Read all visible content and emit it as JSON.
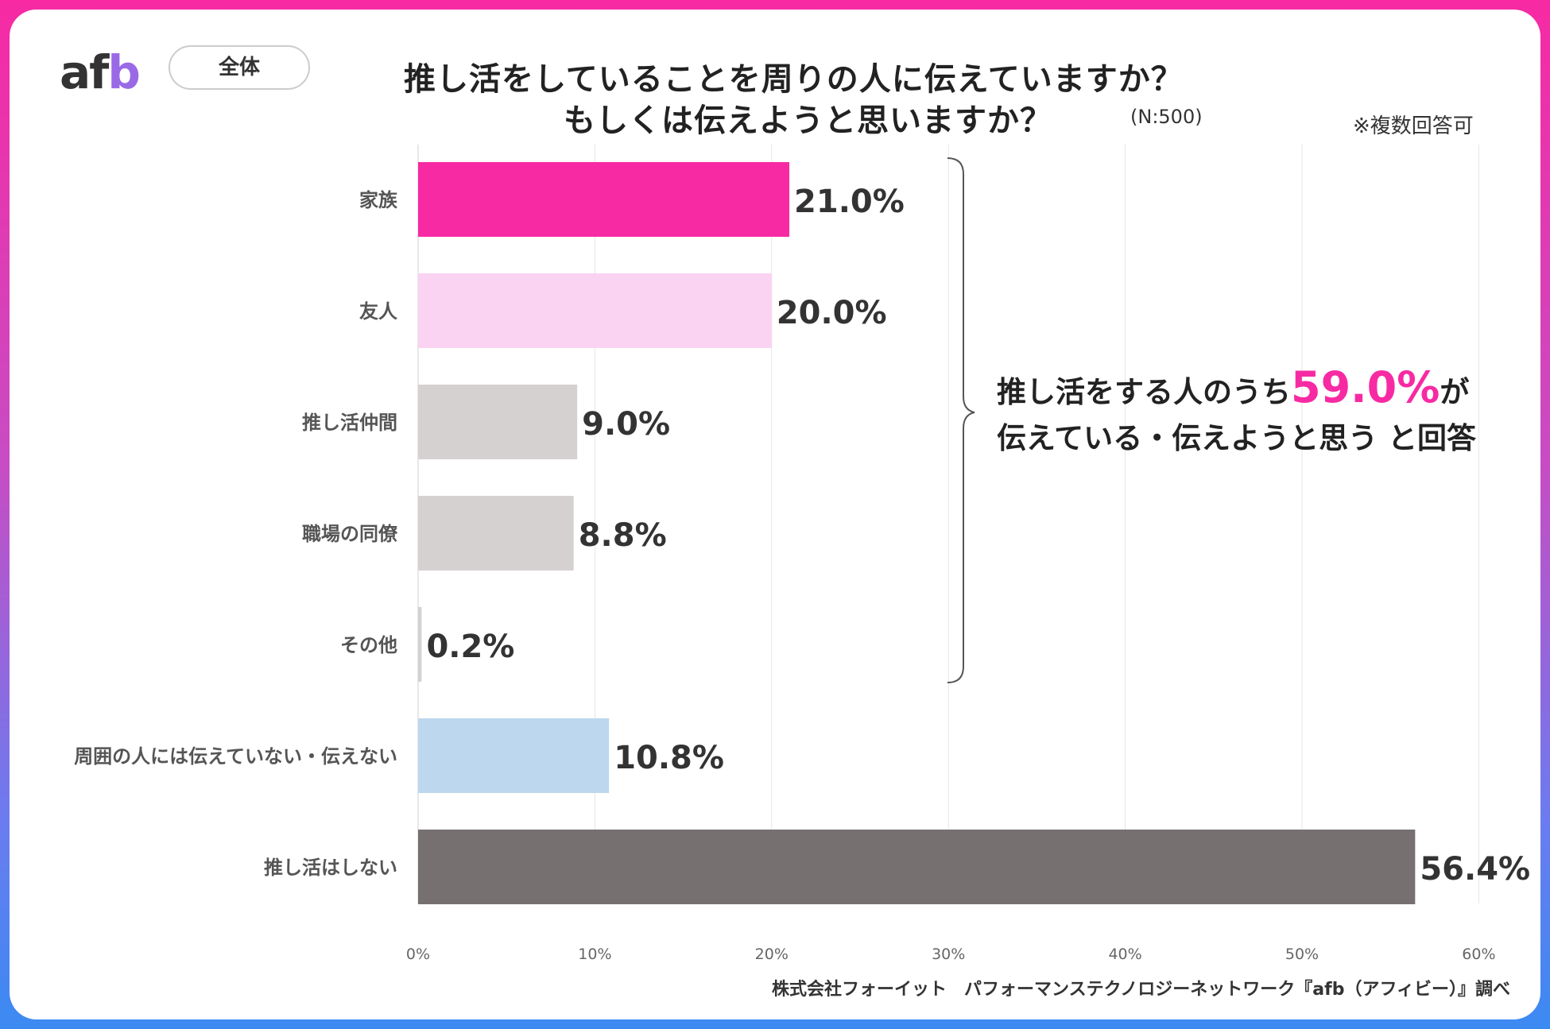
{
  "brand": {
    "logo_text_a": "af",
    "logo_text_b": "b"
  },
  "scope_label": "全体",
  "title": {
    "line1": "推し活をしていることを周りの人に伝えていますか？",
    "line2": "もしくは伝えようと思いますか？",
    "sample": "(N:500)",
    "note": "※複数回答可"
  },
  "callout": {
    "prefix": "推し活をする人のうち",
    "highlight": "59.0%",
    "suffix": "が",
    "line2": "伝えている・伝えようと思う と回答"
  },
  "source": "株式会社フォーイット　パフォーマンステクノロジーネットワーク『afb（アフィビー）』調べ",
  "colors": {
    "accent": "#f72aa3",
    "text": "#333333"
  },
  "chart_data": {
    "type": "bar",
    "orientation": "horizontal",
    "categories": [
      "家族",
      "友人",
      "推し活仲間",
      "職場の同僚",
      "その他",
      "周囲の人には伝えていない・伝えない",
      "推し活はしない"
    ],
    "values": [
      21.0,
      20.0,
      9.0,
      8.8,
      0.2,
      10.8,
      56.4
    ],
    "value_labels": [
      "21.0%",
      "20.0%",
      "9.0%",
      "8.8%",
      "0.2%",
      "10.8%",
      "56.4%"
    ],
    "bar_colors": [
      "#f72aa3",
      "#fbd3f2",
      "#d5d1d1",
      "#d5d1d1",
      "#d5d1d1",
      "#bdd7ee",
      "#767070"
    ],
    "label_colors": [
      "#f72aa3",
      "#333333",
      "#333333",
      "#333333",
      "#333333",
      "#333333",
      "#333333"
    ],
    "label_sizes": [
      "large",
      "large",
      "medium",
      "medium",
      "medium",
      "large",
      "medium"
    ],
    "xlim": [
      0,
      60
    ],
    "xticks": [
      0,
      10,
      20,
      30,
      40,
      50,
      60
    ],
    "xtick_labels": [
      "0%",
      "10%",
      "20%",
      "30%",
      "40%",
      "50%",
      "60%"
    ],
    "unit": "%",
    "grid": true
  }
}
